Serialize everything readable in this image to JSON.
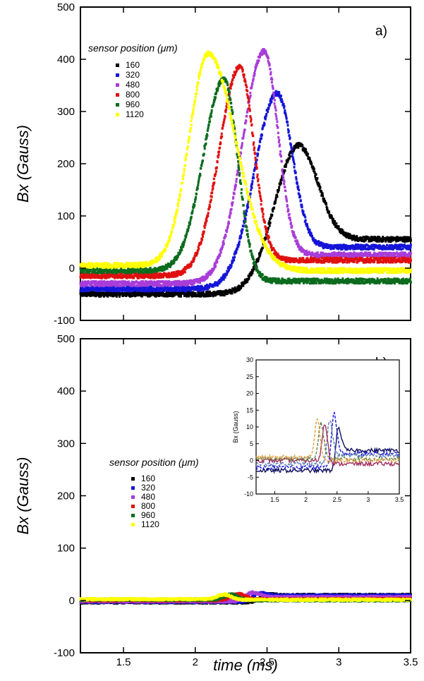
{
  "chart_data": [
    {
      "type": "scatter",
      "panel_label": "a)",
      "xlabel": "time (ms)",
      "ylabel": "Bx (Gauss)",
      "xlim": [
        1.2,
        3.5
      ],
      "ylim": [
        -100,
        500
      ],
      "x_ticks": [
        "1.5",
        "2",
        "2.5",
        "3",
        "3.5"
      ],
      "y_ticks": [
        "500",
        "400",
        "300",
        "200",
        "100",
        "0",
        "-100"
      ],
      "legend_title": "sensor position (μm)",
      "legend_placement": "top-left",
      "series": [
        {
          "name": "160",
          "color": "#000000",
          "base_before": -50,
          "peak_x": 2.72,
          "peak_y": 235,
          "base_after": 55,
          "rise_width": 0.35,
          "fall_width": 0.28
        },
        {
          "name": "320",
          "color": "#1515d8",
          "base_before": -40,
          "peak_x": 2.57,
          "peak_y": 335,
          "base_after": 40,
          "rise_width": 0.33,
          "fall_width": 0.22
        },
        {
          "name": "480",
          "color": "#a83cd8",
          "base_before": -30,
          "peak_x": 2.48,
          "peak_y": 415,
          "base_after": 25,
          "rise_width": 0.32,
          "fall_width": 0.2
        },
        {
          "name": "800",
          "color": "#e01010",
          "base_before": -15,
          "peak_x": 2.31,
          "peak_y": 385,
          "base_after": 15,
          "rise_width": 0.3,
          "fall_width": 0.2
        },
        {
          "name": "960",
          "color": "#0d6b1e",
          "base_before": -5,
          "peak_x": 2.2,
          "peak_y": 362,
          "base_after": -25,
          "rise_width": 0.3,
          "fall_width": 0.2
        },
        {
          "name": "1120",
          "color": "#ffff00",
          "base_before": 5,
          "peak_x": 2.09,
          "peak_y": 410,
          "base_after": -5,
          "rise_width": 0.28,
          "fall_width": 0.4
        }
      ]
    },
    {
      "type": "scatter",
      "panel_label": "b)",
      "xlabel": "time (ms)",
      "ylabel": "Bx (Gauss)",
      "xlim": [
        1.2,
        3.5
      ],
      "ylim": [
        -100,
        500
      ],
      "x_ticks": [
        "1.5",
        "2",
        "2.5",
        "3",
        "3.5"
      ],
      "y_ticks": [
        "500",
        "400",
        "300",
        "200",
        "100",
        "0",
        "-100"
      ],
      "legend_title": "sensor position (μm)",
      "legend_placement": "middle-left",
      "series": [
        {
          "name": "160",
          "color": "#000000",
          "base_before": -4,
          "peak_x": 2.5,
          "peak_y": 12,
          "base_after": 10,
          "rise_width": 0.1,
          "fall_width": 0.1
        },
        {
          "name": "320",
          "color": "#1515d8",
          "base_before": -3,
          "peak_x": 2.45,
          "peak_y": 14,
          "base_after": 9,
          "rise_width": 0.1,
          "fall_width": 0.1
        },
        {
          "name": "480",
          "color": "#a83cd8",
          "base_before": -2,
          "peak_x": 2.4,
          "peak_y": 15,
          "base_after": 6,
          "rise_width": 0.1,
          "fall_width": 0.1
        },
        {
          "name": "800",
          "color": "#e01010",
          "base_before": 0,
          "peak_x": 2.3,
          "peak_y": 12,
          "base_after": 2,
          "rise_width": 0.1,
          "fall_width": 0.1
        },
        {
          "name": "960",
          "color": "#0d6b1e",
          "base_before": 1,
          "peak_x": 2.25,
          "peak_y": 11,
          "base_after": 0,
          "rise_width": 0.1,
          "fall_width": 0.1
        },
        {
          "name": "1120",
          "color": "#ffff00",
          "base_before": 2,
          "peak_x": 2.2,
          "peak_y": 11,
          "base_after": 1,
          "rise_width": 0.1,
          "fall_width": 0.1
        }
      ],
      "inset": {
        "type": "line",
        "ylabel": "Bx (Gauss)",
        "xlim": [
          1.2,
          3.5
        ],
        "ylim": [
          -10,
          30
        ],
        "x_ticks": [
          "1.5",
          "2",
          "2.5",
          "3",
          "3.5"
        ],
        "y_ticks": [
          "30",
          "25",
          "20",
          "15",
          "10",
          "5",
          "0",
          "-5",
          "-10"
        ],
        "series": [
          {
            "color": "#101060",
            "dash": "solid",
            "base_before": -3,
            "peak_x": 2.52,
            "peak_y": 10,
            "base_after": 3
          },
          {
            "color": "#1515d8",
            "dash": "dashed",
            "base_before": -2,
            "peak_x": 2.45,
            "peak_y": 14,
            "base_after": 2
          },
          {
            "color": "#5a78b0",
            "dash": "dashed",
            "base_before": -1,
            "peak_x": 2.38,
            "peak_y": 12,
            "base_after": 1.5
          },
          {
            "color": "#a03060",
            "dash": "solid",
            "base_before": 0,
            "peak_x": 2.3,
            "peak_y": 11,
            "base_after": -1
          },
          {
            "color": "#608040",
            "dash": "dashed",
            "base_before": 0.5,
            "peak_x": 2.24,
            "peak_y": 11,
            "base_after": 0.5
          },
          {
            "color": "#e0a040",
            "dash": "dashed",
            "base_before": 1,
            "peak_x": 2.18,
            "peak_y": 12,
            "base_after": 0
          }
        ]
      }
    }
  ]
}
